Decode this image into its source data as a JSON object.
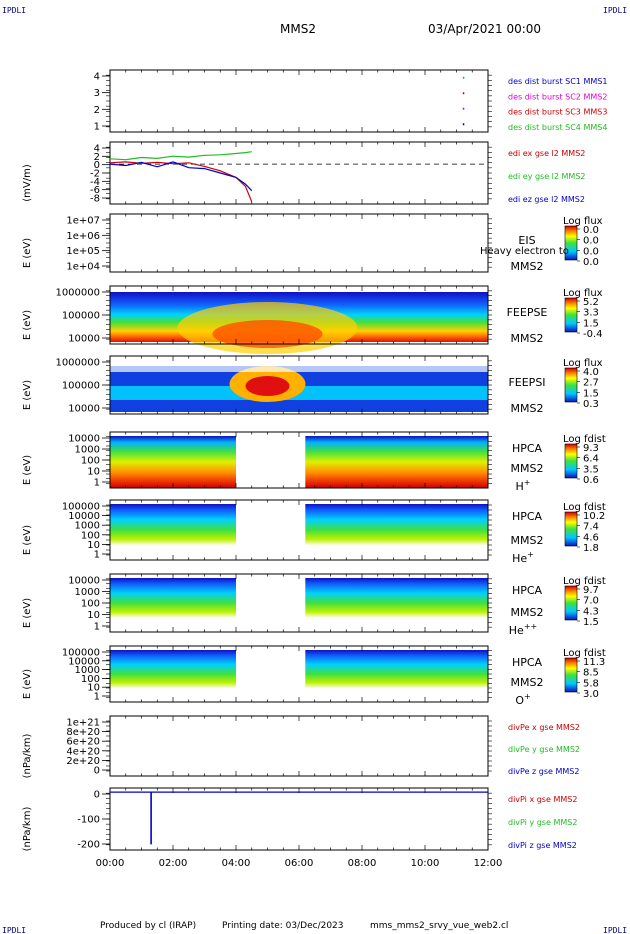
{
  "header": {
    "corner_tl": "IPDLI",
    "corner_tr": "IPDLI",
    "corner_bl": "IPDLI",
    "corner_br": "IPDLI",
    "spacecraft": "MMS2",
    "datetime": "03/Apr/2021 00:00"
  },
  "footer": {
    "produced_by": "Produced by cl (IRAP)",
    "printing_date": "Printing date: 03/Dec/2023",
    "filename": "mms_mms2_srvy_vue_web2.cl"
  },
  "time_axis": {
    "ticks": [
      "00:00",
      "02:00",
      "04:00",
      "06:00",
      "08:00",
      "10:00",
      "12:00"
    ],
    "range_hours": [
      0,
      12
    ]
  },
  "colors": {
    "red": "#cc0000",
    "magenta": "#dd00dd",
    "green": "#22bb22",
    "blue": "#0000cc"
  },
  "chart_data": [
    {
      "type": "line",
      "panel": "des-dist-burst",
      "yticks": [
        "4",
        "3",
        "2",
        "1"
      ],
      "ylim": [
        0.5,
        4.5
      ],
      "legend": [
        "des dist burst SC1 MMS1",
        "des dist burst SC2 MMS2",
        "des dist burst SC3 MMS3",
        "des dist burst SC4 MMS4"
      ],
      "series": [
        {
          "name": "des dist burst SC1 MMS1",
          "x": [
            11.2
          ],
          "y": [
            1
          ]
        },
        {
          "name": "des dist burst SC2 MMS2",
          "x": [
            11.2
          ],
          "y": [
            2
          ]
        },
        {
          "name": "des dist burst SC3 MMS3",
          "x": [
            11.2
          ],
          "y": [
            3
          ]
        },
        {
          "name": "des dist burst SC4 MMS4",
          "x": [
            11.2
          ],
          "y": [
            4
          ]
        }
      ]
    },
    {
      "type": "line",
      "panel": "edi-e-field",
      "ylabel": "(mV/m)",
      "yticks": [
        "4",
        "2",
        "0",
        "-2",
        "-4",
        "-6",
        "-8"
      ],
      "ylim": [
        -9,
        5
      ],
      "legend": [
        "edi ex gse l2 MMS2",
        "edi ey gse l2 MMS2",
        "edi ez gse l2 MMS2"
      ],
      "series": [
        {
          "name": "edi ex gse l2 MMS2",
          "x": [
            0,
            0.5,
            1,
            1.5,
            2,
            2.5,
            3,
            3.5,
            4,
            4.3,
            4.5
          ],
          "y": [
            0.3,
            0.5,
            0.2,
            0.4,
            0.1,
            0.3,
            -0.5,
            -1.5,
            -3,
            -5,
            -8.5
          ]
        },
        {
          "name": "edi ey gse l2 MMS2",
          "x": [
            0,
            0.5,
            1,
            1.5,
            2,
            2.5,
            3,
            3.5,
            4,
            4.3,
            4.5
          ],
          "y": [
            1.2,
            1.0,
            1.5,
            1.3,
            1.8,
            1.6,
            2.0,
            2.1,
            2.4,
            2.6,
            2.8
          ]
        },
        {
          "name": "edi ez gse l2 MMS2",
          "x": [
            0,
            0.5,
            1,
            1.5,
            2,
            2.5,
            3,
            3.5,
            4,
            4.3,
            4.5
          ],
          "y": [
            0.0,
            -0.3,
            0.4,
            -0.6,
            0.5,
            -0.8,
            -1.0,
            -2.0,
            -3.0,
            -4.5,
            -6.0
          ]
        }
      ]
    },
    {
      "type": "heatmap",
      "panel": "eis",
      "ylabel": "E (eV)",
      "yticks": [
        "1e+07",
        "1e+06",
        "1e+05",
        "1e+04"
      ],
      "instrument": "EIS",
      "overlay": "Heavy electron to",
      "sc": "MMS2",
      "cbar_title": "Log flux",
      "cbar_values": [
        "0.0",
        "0.0",
        "0.0",
        "0.0"
      ]
    },
    {
      "type": "heatmap",
      "panel": "feeps-e",
      "ylabel": "E (eV)",
      "yticks": [
        "1000000",
        "100000",
        "10000"
      ],
      "instrument": "FEEPSE",
      "sc": "MMS2",
      "cbar_title": "Log flux",
      "cbar_values": [
        "5.2",
        "3.3",
        "1.5",
        "-0.4"
      ]
    },
    {
      "type": "heatmap",
      "panel": "feeps-i",
      "ylabel": "E (eV)",
      "yticks": [
        "1000000",
        "100000",
        "10000"
      ],
      "instrument": "FEEPSI",
      "sc": "MMS2",
      "cbar_title": "Log flux",
      "cbar_values": [
        "4.0",
        "2.7",
        "1.5",
        "0.3"
      ]
    },
    {
      "type": "heatmap",
      "panel": "hpca-h",
      "ylabel": "E (eV)",
      "yticks": [
        "10000",
        "1000",
        "100",
        "10",
        "1"
      ],
      "instrument": "HPCA",
      "sc": "MMS2",
      "species": "H",
      "species_sup": "+",
      "cbar_title": "Log fdist",
      "cbar_values": [
        "9.3",
        "6.4",
        "3.5",
        "0.6"
      ]
    },
    {
      "type": "heatmap",
      "panel": "hpca-he1",
      "ylabel": "E (eV)",
      "yticks": [
        "100000",
        "10000",
        "1000",
        "100",
        "10",
        "1"
      ],
      "instrument": "HPCA",
      "sc": "MMS2",
      "species": "He",
      "species_sup": "+",
      "cbar_title": "Log fdist",
      "cbar_values": [
        "10.2",
        "7.4",
        "4.6",
        "1.8"
      ]
    },
    {
      "type": "heatmap",
      "panel": "hpca-he2",
      "ylabel": "E (eV)",
      "yticks": [
        "10000",
        "1000",
        "100",
        "10",
        "1"
      ],
      "instrument": "HPCA",
      "sc": "MMS2",
      "species": "He",
      "species_sup": "++",
      "cbar_title": "Log fdist",
      "cbar_values": [
        "9.7",
        "7.0",
        "4.3",
        "1.5"
      ]
    },
    {
      "type": "heatmap",
      "panel": "hpca-o",
      "ylabel": "E (eV)",
      "yticks": [
        "100000",
        "10000",
        "1000",
        "100",
        "10",
        "1"
      ],
      "instrument": "HPCA",
      "sc": "MMS2",
      "species": "O",
      "species_sup": "+",
      "cbar_title": "Log fdist",
      "cbar_values": [
        "11.3",
        "8.5",
        "5.8",
        "3.0"
      ]
    },
    {
      "type": "line",
      "panel": "divpe",
      "ylabel": "(nPa/km)",
      "yticks": [
        "1e+21",
        "8e+20",
        "6e+20",
        "4e+20",
        "2e+20",
        "0"
      ],
      "ylim": [
        0,
        1e+21
      ],
      "legend": [
        "divPe x gse MMS2",
        "divPe y gse MMS2",
        "divPe z gse MMS2"
      ],
      "series": []
    },
    {
      "type": "line",
      "panel": "divpi",
      "ylabel": "(nPa/km)",
      "yticks": [
        "0",
        "-100",
        "-200"
      ],
      "ylim": [
        -280,
        20
      ],
      "legend": [
        "divPi x gse MMS2",
        "divPi y gse MMS2",
        "divPi z gse MMS2"
      ],
      "series": [
        {
          "name": "divPi z gse MMS2",
          "x": [
            0,
            1.3,
            1.3,
            1.31,
            1.31,
            12
          ],
          "y": [
            0,
            0,
            -250,
            -250,
            0,
            0
          ]
        }
      ]
    }
  ]
}
